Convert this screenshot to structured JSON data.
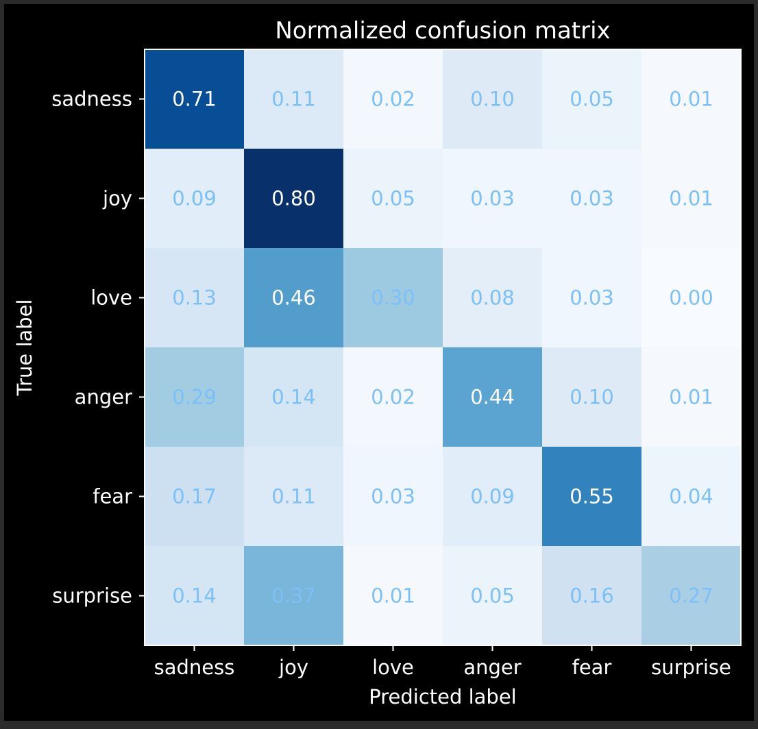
{
  "chart_data": {
    "type": "heatmap",
    "title": "Normalized confusion matrix",
    "xlabel": "Predicted label",
    "ylabel": "True label",
    "x_categories": [
      "sadness",
      "joy",
      "love",
      "anger",
      "fear",
      "surprise"
    ],
    "y_categories": [
      "sadness",
      "joy",
      "love",
      "anger",
      "fear",
      "surprise"
    ],
    "values": [
      [
        0.71,
        0.11,
        0.02,
        0.1,
        0.05,
        0.01
      ],
      [
        0.09,
        0.8,
        0.05,
        0.03,
        0.03,
        0.01
      ],
      [
        0.13,
        0.46,
        0.3,
        0.08,
        0.03,
        0.0
      ],
      [
        0.29,
        0.14,
        0.02,
        0.44,
        0.1,
        0.01
      ],
      [
        0.17,
        0.11,
        0.03,
        0.09,
        0.55,
        0.04
      ],
      [
        0.14,
        0.37,
        0.01,
        0.05,
        0.16,
        0.27
      ]
    ],
    "value_format": "0.00",
    "colormap": "Blues",
    "value_range": [
      0.0,
      0.8
    ],
    "colorbar": false,
    "grid": false
  },
  "colors": {
    "figure_background": "#000000",
    "outer_border": "#2b2b2b",
    "text": "#ffffff",
    "axis_line": "#ffffff",
    "cell_text_light": "#ffffff",
    "cell_text_dark": "#7cc0f7"
  }
}
